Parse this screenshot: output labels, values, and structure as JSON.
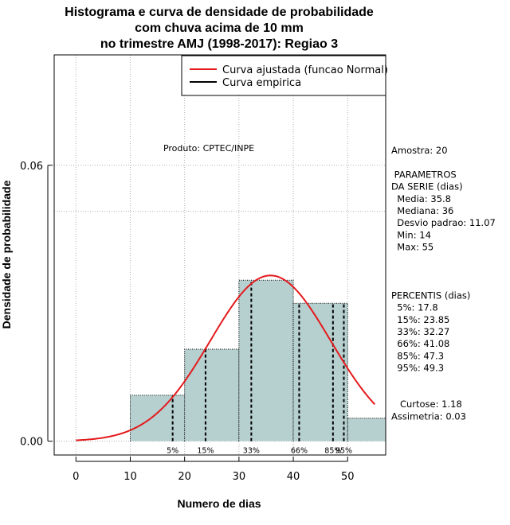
{
  "chart_data": {
    "type": "bar",
    "title_lines": [
      "Histograma e curva de densidade de probabilidade",
      "com chuva acima de 10 mm",
      "no trimestre AMJ (1998-2017): Regiao 3"
    ],
    "xlabel": "Numero de dias",
    "ylabel": "Densidade de probabilidade",
    "xlim": [
      -4,
      57
    ],
    "ylim": [
      -0.003,
      0.084
    ],
    "xticks": [
      0,
      10,
      20,
      30,
      40,
      50
    ],
    "yticks": [
      0.0,
      0.06
    ],
    "ytick_labels": [
      "0.00",
      "0.06"
    ],
    "hline": 0.05,
    "bins": [
      {
        "x0": 10,
        "x1": 20,
        "density": 0.01
      },
      {
        "x0": 20,
        "x1": 30,
        "density": 0.02
      },
      {
        "x0": 30,
        "x1": 40,
        "density": 0.035
      },
      {
        "x0": 40,
        "x1": 50,
        "density": 0.03
      },
      {
        "x0": 50,
        "x1": 60,
        "density": 0.005
      }
    ],
    "normal_curve": {
      "mean": 35.8,
      "sd": 11.07,
      "x_from": 0,
      "x_to": 55
    },
    "percentile_lines": [
      {
        "label": "5%",
        "x": 17.8
      },
      {
        "label": "15%",
        "x": 23.85
      },
      {
        "label": "33%",
        "x": 32.27
      },
      {
        "label": "66%",
        "x": 41.08
      },
      {
        "label": "85%",
        "x": 47.3
      },
      {
        "label": "95%",
        "x": 49.3
      }
    ],
    "legend": [
      {
        "label": "Curva ajustada (funcao Normal)",
        "color": "#e41a1c"
      },
      {
        "label": "Curva empirica",
        "color": "#000000"
      }
    ],
    "annotation": "Produto: CPTEC/INPE",
    "bar_color": "#b6cfcf",
    "curve_color": "#e41a1c",
    "stats_lines": [
      "Amostra: 20",
      "",
      " PARAMETROS",
      "DA SERIE (dias)",
      "  Media: 35.8",
      "  Mediana: 36",
      "  Desvio padrao: 11.07",
      "  Min: 14",
      "  Max: 55",
      "",
      "",
      "",
      "PERCENTIS (dias)",
      "  5%: 17.8",
      "  15%: 23.85",
      "  33%: 32.27",
      "  66%: 41.08",
      "  85%: 47.3",
      "  95%: 49.3",
      "",
      "",
      "   Curtose: 1.18",
      "Assimetria: 0.03"
    ]
  }
}
